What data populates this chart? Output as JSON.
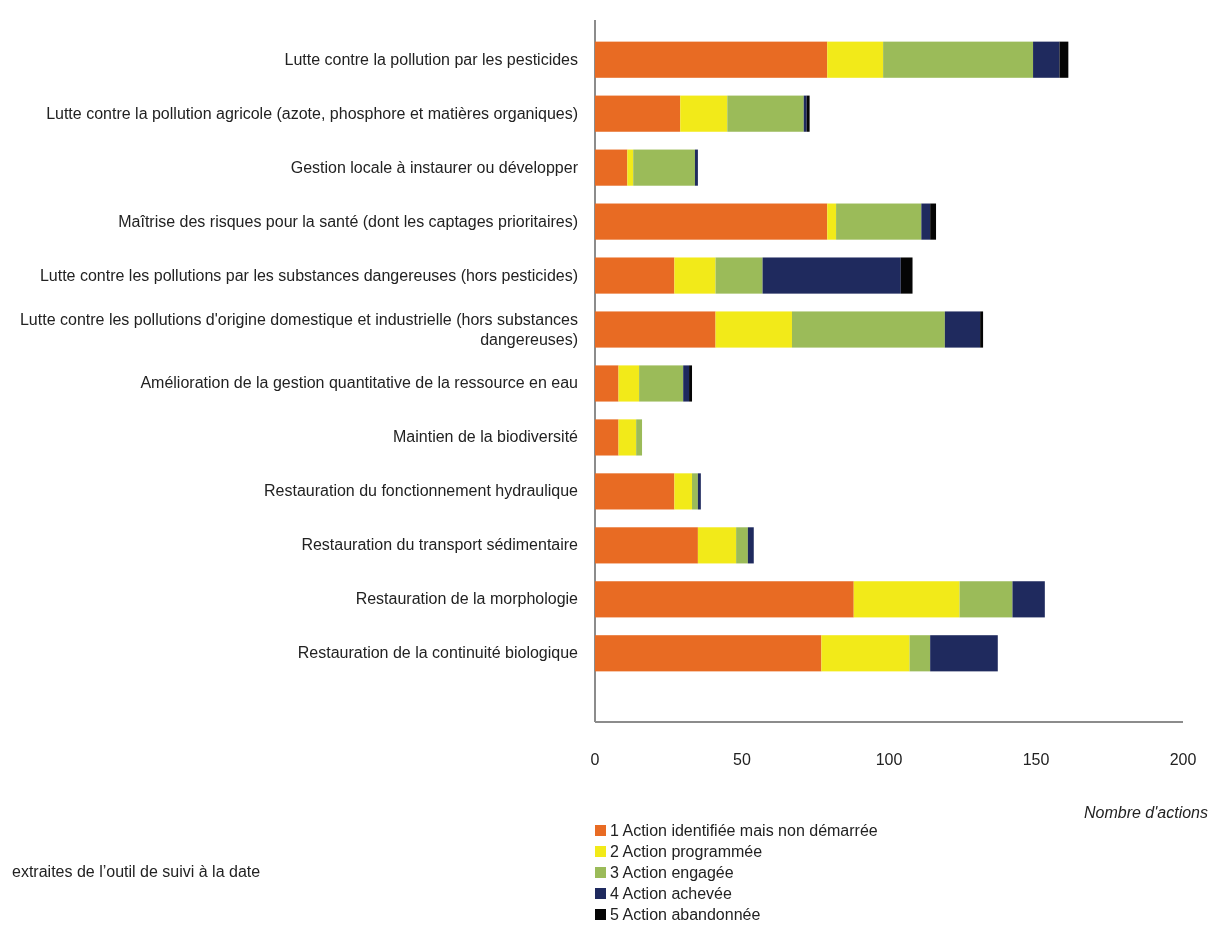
{
  "chart_data": {
    "type": "bar",
    "orientation": "horizontal",
    "stacked": true,
    "categories": [
      "Lutte contre la pollution par les pesticides",
      "Lutte contre la pollution agricole (azote, phosphore et matières organiques)",
      "Gestion locale à instaurer ou développer",
      "Maîtrise des risques pour la santé (dont les captages prioritaires)",
      "Lutte contre les pollutions par les substances dangereuses (hors pesticides)",
      "Lutte contre les pollutions d'origine domestique et industrielle (hors substances dangereuses)",
      "Amélioration de la gestion quantitative de la ressource en eau",
      "Maintien de la biodiversité",
      "Restauration du fonctionnement hydraulique",
      "Restauration du transport sédimentaire",
      "Restauration de la morphologie",
      "Restauration de la continuité biologique"
    ],
    "series": [
      {
        "name": "1 Action identifiée mais non démarrée",
        "color": "#e86b23",
        "values": [
          79,
          29,
          11,
          79,
          27,
          41,
          8,
          8,
          27,
          35,
          88,
          77
        ]
      },
      {
        "name": "2 Action programmée",
        "color": "#f2ea19",
        "values": [
          19,
          16,
          2,
          3,
          14,
          26,
          7,
          6,
          6,
          13,
          36,
          30
        ]
      },
      {
        "name": "3 Action engagée",
        "color": "#9bbb59",
        "values": [
          51,
          26,
          21,
          29,
          16,
          52,
          15,
          2,
          2,
          4,
          18,
          7
        ]
      },
      {
        "name": "4 Action achevée",
        "color": "#1f2a5e",
        "values": [
          9,
          1,
          1,
          3,
          47,
          12,
          2,
          0,
          1,
          2,
          11,
          23
        ]
      },
      {
        "name": "5 Action abandonnée",
        "color": "#050505",
        "values": [
          3,
          1,
          0,
          2,
          4,
          1,
          1,
          0,
          0,
          0,
          0,
          0
        ]
      }
    ],
    "xlim": [
      0,
      200
    ],
    "xticks": [
      0,
      50,
      100,
      150,
      200
    ],
    "xlabel": "Nombre d'actions",
    "legend": "bottom",
    "grid": false,
    "annotations": [
      "extraites de l’outil de suivi à la date"
    ]
  }
}
